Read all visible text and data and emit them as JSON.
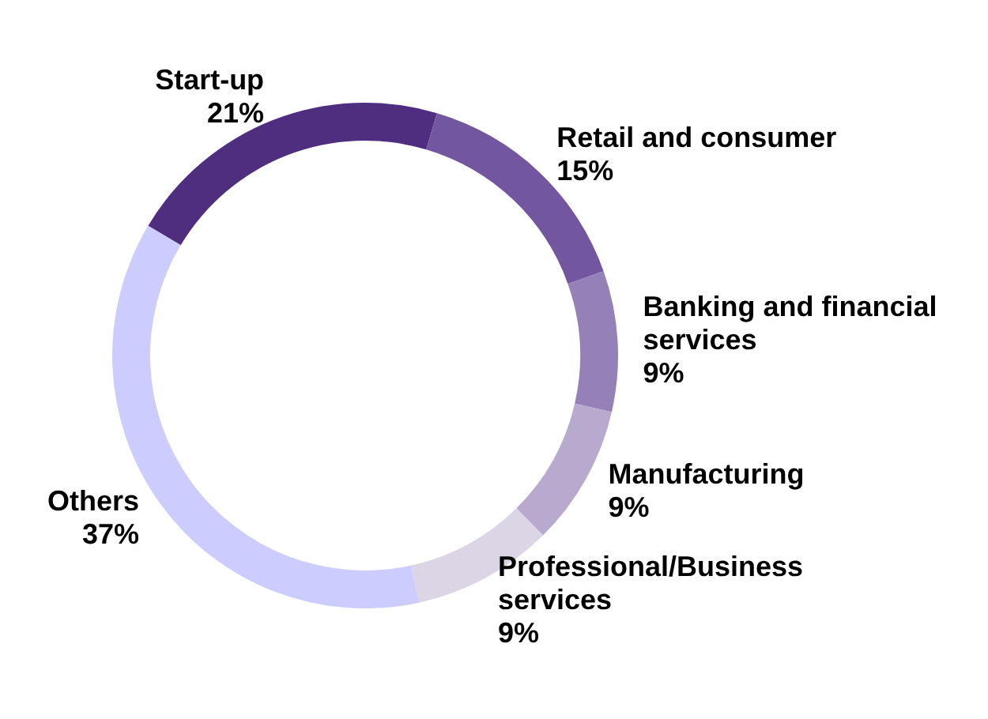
{
  "chart_data": {
    "type": "donut",
    "categories": [
      "Start-up",
      "Retail and consumer",
      "Banking and financial services",
      "Manufacturing",
      "Professional/Business services",
      "Others"
    ],
    "values": [
      21,
      15,
      9,
      9,
      9,
      37
    ],
    "colors": [
      "#4f2d7f",
      "#7256a0",
      "#9580b8",
      "#b8a9cf",
      "#dbd5e6",
      "#ccccff"
    ],
    "value_labels": [
      "21%",
      "15%",
      "9%",
      "9%",
      "9%",
      "37%"
    ]
  }
}
